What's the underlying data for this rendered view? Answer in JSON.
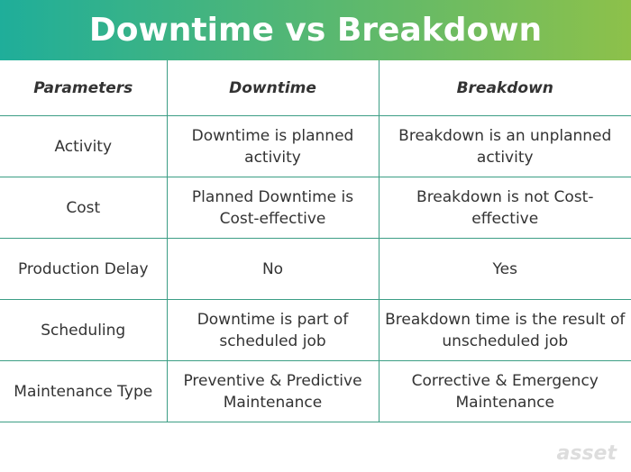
{
  "header": {
    "title": "Downtime vs Breakdown"
  },
  "table": {
    "columns": [
      "Parameters",
      "Downtime",
      "Breakdown"
    ],
    "rows": [
      [
        "Activity",
        "Downtime is planned activity",
        "Breakdown is an unplanned activity"
      ],
      [
        "Cost",
        "Planned Downtime is Cost-effective",
        "Breakdown is not Cost-effective"
      ],
      [
        "Production Delay",
        "No",
        "Yes"
      ],
      [
        "Scheduling",
        "Downtime is part of scheduled job",
        "Breakdown time is the result of unscheduled job"
      ],
      [
        "Maintenance Type",
        "Preventive & Predictive Maintenance",
        "Corrective & Emergency Maintenance"
      ]
    ]
  },
  "watermark": "asset"
}
